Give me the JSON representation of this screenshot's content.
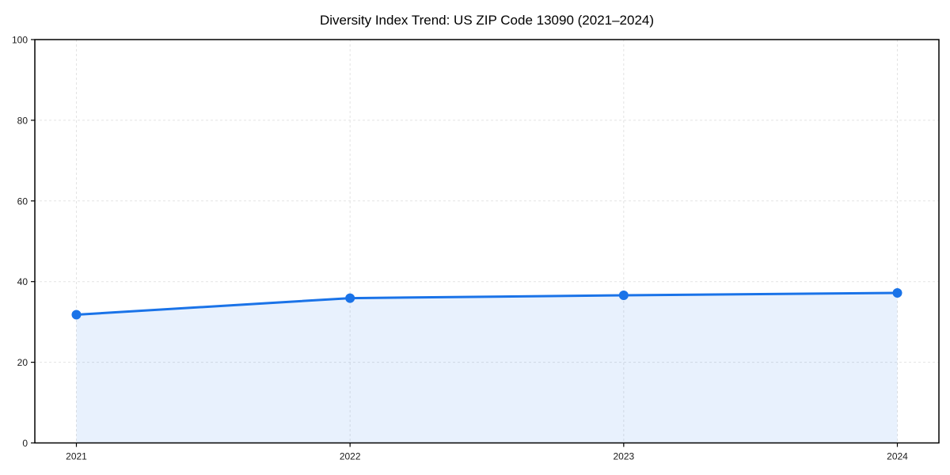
{
  "chart_data": {
    "type": "area",
    "title": "Diversity Index Trend: US ZIP Code 13090 (2021–2024)",
    "categories": [
      "2021",
      "2022",
      "2023",
      "2024"
    ],
    "series": [
      {
        "name": "Diversity Index",
        "values": [
          31.8,
          35.9,
          36.6,
          37.2
        ]
      }
    ],
    "x": [
      2021,
      2022,
      2023,
      2024
    ],
    "xlabel": "",
    "ylabel": "",
    "ylim": [
      0,
      100
    ],
    "yticks": [
      0,
      20,
      40,
      60,
      80,
      100
    ],
    "grid": true,
    "legend_position": "none",
    "line_color": "#1a73e8",
    "marker_color": "#1a73e8",
    "fill_color": "rgba(26,115,232,0.10)",
    "grid_color": "#e3e3e3",
    "spine_color": "#000000",
    "background_color": "#ffffff",
    "marker": "circle"
  }
}
